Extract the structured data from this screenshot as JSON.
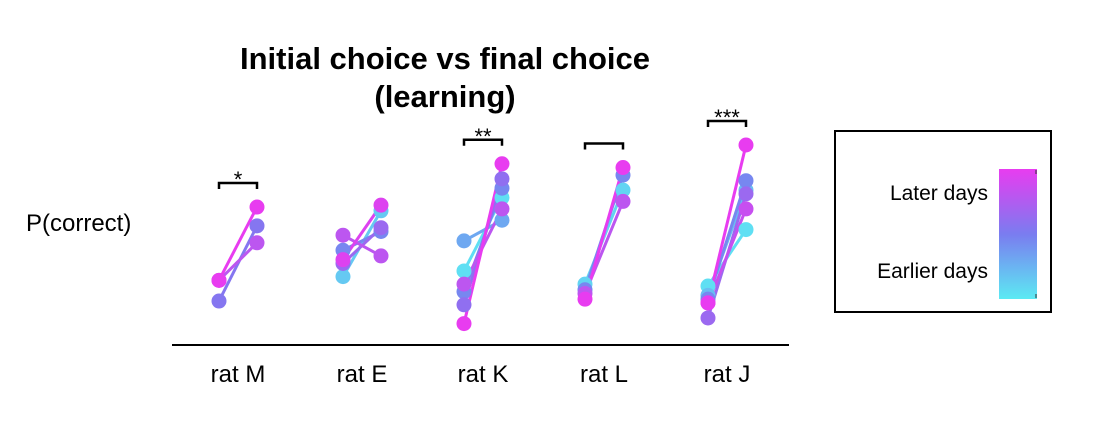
{
  "chart_data": {
    "type": "line",
    "title": "Initial choice vs final choice (learning)",
    "title_lines": [
      "Initial choice vs final choice",
      "(learning)"
    ],
    "ylabel": "P(correct)",
    "xlabel": "",
    "categories": [
      "rat M",
      "rat E",
      "rat K",
      "rat L",
      "rat J"
    ],
    "y_axis_visible": false,
    "grid": false,
    "ylim": [
      0,
      1
    ],
    "color_scale": {
      "top_label": "Later days",
      "bottom_label": "Earlier days",
      "top_color": "#e83cf0",
      "mid_color": "#7a7cf0",
      "bottom_color": "#5ceaf3"
    },
    "rats": [
      {
        "name": "rat M",
        "significance": "*",
        "pairs": [
          {
            "day_level": 0.55,
            "initial": 0.17,
            "final": 0.57
          },
          {
            "day_level": 0.8,
            "initial": 0.28,
            "final": 0.48
          },
          {
            "day_level": 1.0,
            "initial": 0.28,
            "final": 0.67
          }
        ]
      },
      {
        "name": "rat E",
        "significance": "",
        "pairs": [
          {
            "day_level": 0.15,
            "initial": 0.3,
            "final": 0.65
          },
          {
            "day_level": 0.45,
            "initial": 0.44,
            "final": 0.54
          },
          {
            "day_level": 0.65,
            "initial": 0.37,
            "final": 0.56
          },
          {
            "day_level": 0.8,
            "initial": 0.52,
            "final": 0.41
          },
          {
            "day_level": 0.95,
            "initial": 0.39,
            "final": 0.68
          }
        ]
      },
      {
        "name": "rat K",
        "significance": "**",
        "pairs": [
          {
            "day_level": 0.05,
            "initial": 0.33,
            "final": 0.72
          },
          {
            "day_level": 0.3,
            "initial": 0.49,
            "final": 0.6
          },
          {
            "day_level": 0.45,
            "initial": 0.22,
            "final": 0.77
          },
          {
            "day_level": 0.6,
            "initial": 0.15,
            "final": 0.82
          },
          {
            "day_level": 0.8,
            "initial": 0.26,
            "final": 0.66
          },
          {
            "day_level": 1.0,
            "initial": 0.05,
            "final": 0.9
          }
        ]
      },
      {
        "name": "rat L",
        "significance": "",
        "pairs": [
          {
            "day_level": 0.1,
            "initial": 0.26,
            "final": 0.76
          },
          {
            "day_level": 0.45,
            "initial": 0.23,
            "final": 0.84
          },
          {
            "day_level": 0.8,
            "initial": 0.21,
            "final": 0.7
          },
          {
            "day_level": 1.0,
            "initial": 0.18,
            "final": 0.88
          }
        ]
      },
      {
        "name": "rat J",
        "significance": "***",
        "pairs": [
          {
            "day_level": 0.05,
            "initial": 0.25,
            "final": 0.55
          },
          {
            "day_level": 0.2,
            "initial": 0.2,
            "final": 0.76
          },
          {
            "day_level": 0.45,
            "initial": 0.18,
            "final": 0.81
          },
          {
            "day_level": 0.65,
            "initial": 0.08,
            "final": 0.74
          },
          {
            "day_level": 0.85,
            "initial": 0.16,
            "final": 0.66
          },
          {
            "day_level": 1.0,
            "initial": 0.16,
            "final": 1.0
          }
        ]
      }
    ]
  }
}
